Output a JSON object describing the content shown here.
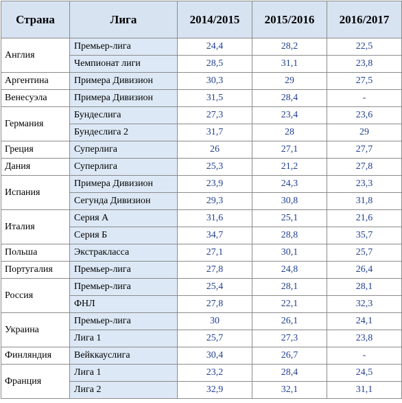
{
  "headers": {
    "country": "Страна",
    "league": "Лига",
    "s1": "2014/2015",
    "s2": "2015/2016",
    "s3": "2016/2017"
  },
  "rows": [
    {
      "country": "Англия",
      "span": 2,
      "league": "Премьер-лига",
      "v": [
        "24,4",
        "28,2",
        "22,5"
      ]
    },
    {
      "league": "Чемпионат лиги",
      "v": [
        "28,5",
        "31,1",
        "23,8"
      ]
    },
    {
      "country": "Аргентина",
      "span": 1,
      "league": "Примера Дивизион",
      "v": [
        "30,3",
        "29",
        "27,5"
      ]
    },
    {
      "country": "Венесуэла",
      "span": 1,
      "league": "Примера Дивизион",
      "v": [
        "31,5",
        "28,4",
        "-"
      ]
    },
    {
      "country": "Германия",
      "span": 2,
      "league": "Бундеслига",
      "v": [
        "27,3",
        "23,4",
        "23,6"
      ]
    },
    {
      "league": "Бундеслига 2",
      "v": [
        "31,7",
        "28",
        "29"
      ]
    },
    {
      "country": "Греция",
      "span": 1,
      "league": "Суперлига",
      "v": [
        "26",
        "27,1",
        "27,7"
      ]
    },
    {
      "country": "Дания",
      "span": 1,
      "league": "Суперлига",
      "v": [
        "25,3",
        "21,2",
        "27,8"
      ]
    },
    {
      "country": "Испания",
      "span": 2,
      "league": "Примера Дивизион",
      "v": [
        "23,9",
        "24,3",
        "23,3"
      ]
    },
    {
      "league": "Сегунда Дивизион",
      "v": [
        "29,3",
        "30,8",
        "31,8"
      ]
    },
    {
      "country": "Италия",
      "span": 2,
      "league": "Серия А",
      "v": [
        "31,6",
        "25,1",
        "21,6"
      ]
    },
    {
      "league": "Серия Б",
      "v": [
        "34,7",
        "28,8",
        "35,7"
      ]
    },
    {
      "country": "Польша",
      "span": 1,
      "league": "Экстракласса",
      "v": [
        "27,1",
        "30,1",
        "25,7"
      ]
    },
    {
      "country": "Португалия",
      "span": 1,
      "league": "Премьер-лига",
      "v": [
        "27,8",
        "24,8",
        "26,4"
      ]
    },
    {
      "country": "Россия",
      "span": 2,
      "league": "Премьер-лига",
      "v": [
        "25,4",
        "28,1",
        "28,1"
      ]
    },
    {
      "league": "ФНЛ",
      "v": [
        "27,8",
        "22,1",
        "32,3"
      ]
    },
    {
      "country": "Украина",
      "span": 2,
      "league": "Премьер-лига",
      "v": [
        "30",
        "26,1",
        "24,1"
      ]
    },
    {
      "league": "Лига 1",
      "v": [
        "25,7",
        "27,3",
        "23,8"
      ]
    },
    {
      "country": "Финляндия",
      "span": 1,
      "league": "Вейккауслига",
      "v": [
        "30,4",
        "26,7",
        "-"
      ]
    },
    {
      "country": "Франция",
      "span": 2,
      "league": "Лига 1",
      "v": [
        "23,2",
        "28,4",
        "24,5"
      ]
    },
    {
      "league": "Лига 2",
      "v": [
        "32,9",
        "32,1",
        "31,1"
      ]
    }
  ]
}
